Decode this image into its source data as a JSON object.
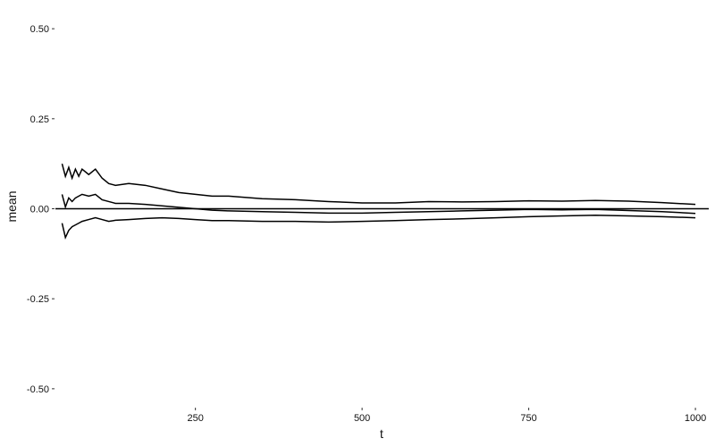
{
  "chart_data": {
    "type": "line",
    "xlabel": "t",
    "ylabel": "mean",
    "xlim": [
      40,
      1020
    ],
    "ylim": [
      -0.55,
      0.55
    ],
    "x_ticks": [
      250,
      500,
      750,
      1000
    ],
    "y_ticks": [
      0.5,
      0.25,
      0.0,
      -0.25,
      -0.5
    ],
    "y_tick_labels": [
      "0.50",
      "0.25",
      "0.00",
      "-0.25",
      "-0.50"
    ],
    "grid": false,
    "legend": "none",
    "hline": 0.0,
    "series": [
      {
        "role": "upper",
        "x": [
          50,
          55,
          60,
          65,
          70,
          75,
          80,
          90,
          100,
          110,
          120,
          130,
          150,
          175,
          200,
          225,
          250,
          275,
          300,
          350,
          400,
          450,
          500,
          550,
          600,
          650,
          700,
          750,
          800,
          850,
          900,
          950,
          1000
        ],
        "values": [
          0.125,
          0.09,
          0.115,
          0.085,
          0.11,
          0.09,
          0.11,
          0.095,
          0.11,
          0.085,
          0.07,
          0.065,
          0.07,
          0.065,
          0.055,
          0.045,
          0.04,
          0.035,
          0.035,
          0.028,
          0.025,
          0.02,
          0.016,
          0.016,
          0.02,
          0.019,
          0.02,
          0.022,
          0.021,
          0.023,
          0.021,
          0.017,
          0.012
        ]
      },
      {
        "role": "mean",
        "x": [
          50,
          55,
          60,
          65,
          70,
          75,
          80,
          90,
          100,
          110,
          120,
          130,
          150,
          175,
          200,
          225,
          250,
          275,
          300,
          350,
          400,
          450,
          500,
          550,
          600,
          650,
          700,
          750,
          800,
          850,
          900,
          950,
          1000
        ],
        "values": [
          0.04,
          0.005,
          0.03,
          0.02,
          0.03,
          0.035,
          0.04,
          0.035,
          0.04,
          0.025,
          0.02,
          0.015,
          0.015,
          0.012,
          0.008,
          0.004,
          0.0,
          -0.004,
          -0.006,
          -0.008,
          -0.01,
          -0.012,
          -0.012,
          -0.01,
          -0.008,
          -0.006,
          -0.004,
          -0.002,
          -0.003,
          -0.002,
          -0.005,
          -0.008,
          -0.013
        ]
      },
      {
        "role": "lower",
        "x": [
          50,
          55,
          60,
          65,
          70,
          75,
          80,
          90,
          100,
          110,
          120,
          130,
          150,
          175,
          200,
          225,
          250,
          275,
          300,
          350,
          400,
          450,
          500,
          550,
          600,
          650,
          700,
          750,
          800,
          850,
          900,
          950,
          1000
        ],
        "values": [
          -0.04,
          -0.08,
          -0.06,
          -0.05,
          -0.045,
          -0.04,
          -0.035,
          -0.03,
          -0.025,
          -0.03,
          -0.035,
          -0.032,
          -0.03,
          -0.027,
          -0.025,
          -0.027,
          -0.03,
          -0.033,
          -0.033,
          -0.035,
          -0.035,
          -0.037,
          -0.035,
          -0.033,
          -0.03,
          -0.028,
          -0.025,
          -0.022,
          -0.02,
          -0.018,
          -0.02,
          -0.022,
          -0.025
        ]
      }
    ]
  }
}
